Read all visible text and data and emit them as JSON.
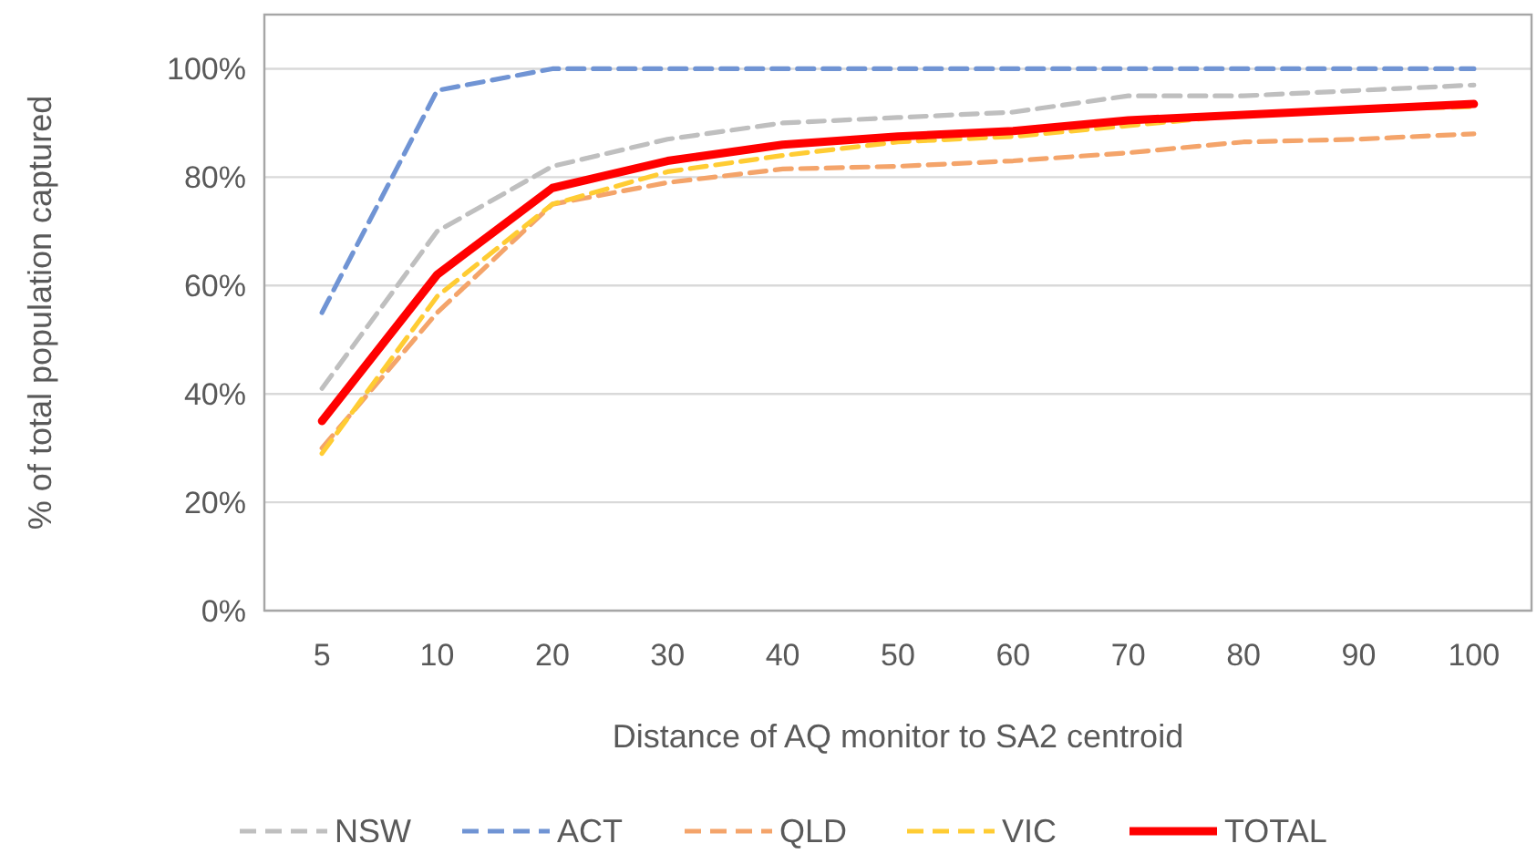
{
  "chart_data": {
    "type": "line",
    "xlabel": "Distance of AQ monitor to SA2 centroid",
    "ylabel": "% of total population captured",
    "categories": [
      "5",
      "10",
      "20",
      "30",
      "40",
      "50",
      "60",
      "70",
      "80",
      "90",
      "100"
    ],
    "ylim": [
      0,
      110
    ],
    "yticks": [
      {
        "value": 0,
        "label": "0%"
      },
      {
        "value": 20,
        "label": "20%"
      },
      {
        "value": 40,
        "label": "40%"
      },
      {
        "value": 60,
        "label": "60%"
      },
      {
        "value": 80,
        "label": "80%"
      },
      {
        "value": 100,
        "label": "100%"
      }
    ],
    "grid": "y",
    "legend": "bottom",
    "series": [
      {
        "name": "NSW",
        "color": "#bfbfbf",
        "line_style": "dashed",
        "values": [
          41,
          70,
          82,
          87,
          90,
          91,
          92,
          95,
          95,
          96,
          97
        ]
      },
      {
        "name": "ACT",
        "color": "#7094d4",
        "line_style": "dashed",
        "values": [
          55,
          96,
          100,
          100,
          100,
          100,
          100,
          100,
          100,
          100,
          100
        ]
      },
      {
        "name": "QLD",
        "color": "#f4a46a",
        "line_style": "dashed",
        "values": [
          30,
          55,
          75,
          79,
          81.5,
          82,
          83,
          84.5,
          86.5,
          87,
          88
        ]
      },
      {
        "name": "VIC",
        "color": "#ffcc33",
        "line_style": "dashed",
        "values": [
          29,
          58,
          75,
          81,
          84,
          86.5,
          87.5,
          89.5,
          91.5,
          92.5,
          93
        ]
      },
      {
        "name": "TOTAL",
        "color": "#ff0000",
        "line_style": "solid",
        "values": [
          35,
          62,
          78,
          83,
          86,
          87.5,
          88.5,
          90.5,
          91.5,
          92.5,
          93.5
        ]
      }
    ]
  }
}
